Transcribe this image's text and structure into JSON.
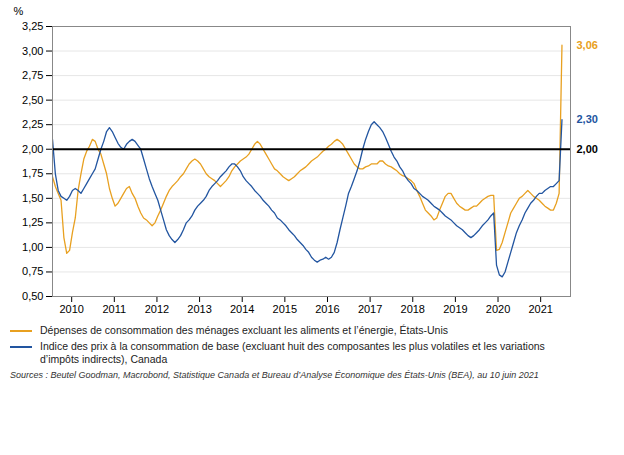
{
  "chart_data": {
    "type": "line",
    "ylabel": "%",
    "source": "Sources : Beutel Goodman, Macrobond, Statistique Canada et Bureau d’Analyse Économique des États-Unis (BEA), au 10 juin 2021",
    "x": [
      2009.55,
      2009.6168,
      2009.6835,
      2009.7503,
      2009.817,
      2009.8838,
      2009.9506,
      2010.0173,
      2010.0841,
      2010.1508,
      2010.2176,
      2010.2844,
      2010.3511,
      2010.4179,
      2010.4846,
      2010.5514,
      2010.6182,
      2010.6849,
      2010.7517,
      2010.8184,
      2010.8852,
      2010.952,
      2011.0187,
      2011.0855,
      2011.1522,
      2011.219,
      2011.2858,
      2011.3525,
      2011.4193,
      2011.486,
      2011.5528,
      2011.6196,
      2011.6863,
      2011.7531,
      2011.8198,
      2011.8866,
      2011.9534,
      2012.0201,
      2012.0869,
      2012.1536,
      2012.2204,
      2012.2872,
      2012.3539,
      2012.4207,
      2012.4874,
      2012.5542,
      2012.6209,
      2012.6877,
      2012.7545,
      2012.8212,
      2012.888,
      2012.9547,
      2013.0215,
      2013.0883,
      2013.155,
      2013.2218,
      2013.2885,
      2013.3553,
      2013.4221,
      2013.4888,
      2013.5556,
      2013.6223,
      2013.6891,
      2013.7559,
      2013.8226,
      2013.8894,
      2013.9561,
      2014.0229,
      2014.0897,
      2014.1564,
      2014.2232,
      2014.2899,
      2014.3567,
      2014.4235,
      2014.4902,
      2014.557,
      2014.6237,
      2014.6905,
      2014.7573,
      2014.824,
      2014.8908,
      2014.9575,
      2015.0243,
      2015.0911,
      2015.1578,
      2015.2246,
      2015.2913,
      2015.3581,
      2015.4249,
      2015.4916,
      2015.5584,
      2015.6251,
      2015.6919,
      2015.7587,
      2015.8254,
      2015.8922,
      2015.9589,
      2016.0257,
      2016.0925,
      2016.1592,
      2016.226,
      2016.2927,
      2016.3595,
      2016.4263,
      2016.493,
      2016.5598,
      2016.6265,
      2016.6933,
      2016.7601,
      2016.8268,
      2016.8936,
      2016.9603,
      2017.0271,
      2017.0939,
      2017.1606,
      2017.2274,
      2017.2941,
      2017.3609,
      2017.4277,
      2017.4944,
      2017.5612,
      2017.6279,
      2017.6947,
      2017.7615,
      2017.8282,
      2017.895,
      2017.9617,
      2018.0285,
      2018.0953,
      2018.162,
      2018.2288,
      2018.2955,
      2018.3623,
      2018.4291,
      2018.4958,
      2018.5626,
      2018.6293,
      2018.6961,
      2018.7628,
      2018.8296,
      2018.8964,
      2018.9631,
      2019.0299,
      2019.0966,
      2019.1634,
      2019.2302,
      2019.2969,
      2019.3637,
      2019.4304,
      2019.4972,
      2019.564,
      2019.6307,
      2019.6975,
      2019.7642,
      2019.831,
      2019.8978,
      2019.9645,
      2020.0313,
      2020.098,
      2020.1648,
      2020.2316,
      2020.2983,
      2020.3651,
      2020.4318,
      2020.4986,
      2020.5654,
      2020.6321,
      2020.6989,
      2020.7656,
      2020.8324,
      2020.8992,
      2020.9659,
      2021.0327,
      2021.0994,
      2021.1662,
      2021.233,
      2021.2997,
      2021.3665,
      2021.4332,
      2021.5
    ],
    "series": [
      {
        "name": "Dépenses de consommation des ménages excluant les aliments et l’énergie, États-Unis",
        "color": "#E8A020",
        "values": [
          1.72,
          1.62,
          1.55,
          1.48,
          1.1,
          0.94,
          0.97,
          1.15,
          1.3,
          1.58,
          1.75,
          1.9,
          1.98,
          2.03,
          2.1,
          2.08,
          2.0,
          1.95,
          1.85,
          1.75,
          1.6,
          1.5,
          1.42,
          1.45,
          1.5,
          1.55,
          1.6,
          1.62,
          1.55,
          1.5,
          1.42,
          1.35,
          1.3,
          1.28,
          1.25,
          1.22,
          1.25,
          1.32,
          1.38,
          1.45,
          1.52,
          1.58,
          1.62,
          1.65,
          1.68,
          1.72,
          1.75,
          1.8,
          1.85,
          1.88,
          1.9,
          1.88,
          1.85,
          1.8,
          1.75,
          1.72,
          1.7,
          1.68,
          1.65,
          1.62,
          1.65,
          1.68,
          1.72,
          1.78,
          1.82,
          1.85,
          1.88,
          1.9,
          1.92,
          1.95,
          2.0,
          2.05,
          2.08,
          2.05,
          2.0,
          1.95,
          1.9,
          1.85,
          1.8,
          1.78,
          1.75,
          1.72,
          1.7,
          1.68,
          1.7,
          1.72,
          1.75,
          1.78,
          1.8,
          1.82,
          1.85,
          1.88,
          1.9,
          1.92,
          1.95,
          1.98,
          2.0,
          2.03,
          2.05,
          2.08,
          2.1,
          2.08,
          2.05,
          2.0,
          1.95,
          1.9,
          1.85,
          1.82,
          1.8,
          1.8,
          1.82,
          1.83,
          1.85,
          1.85,
          1.85,
          1.88,
          1.88,
          1.85,
          1.83,
          1.82,
          1.8,
          1.78,
          1.75,
          1.73,
          1.72,
          1.7,
          1.68,
          1.65,
          1.58,
          1.52,
          1.45,
          1.38,
          1.35,
          1.32,
          1.28,
          1.3,
          1.38,
          1.45,
          1.52,
          1.55,
          1.55,
          1.5,
          1.45,
          1.42,
          1.4,
          1.38,
          1.38,
          1.4,
          1.42,
          1.42,
          1.45,
          1.48,
          1.5,
          1.52,
          1.53,
          1.53,
          0.97,
          0.98,
          1.05,
          1.15,
          1.25,
          1.35,
          1.4,
          1.45,
          1.5,
          1.52,
          1.55,
          1.58,
          1.55,
          1.52,
          1.5,
          1.48,
          1.45,
          1.42,
          1.4,
          1.38,
          1.38,
          1.45,
          1.55,
          3.06
        ]
      },
      {
        "name": "Indice des prix à la consommation de base (excluant huit des composantes les plus volatiles et les variations\nd’impôts indirects), Canada",
        "color": "#2255A0",
        "values": [
          2.1,
          1.75,
          1.58,
          1.52,
          1.5,
          1.48,
          1.52,
          1.58,
          1.6,
          1.58,
          1.55,
          1.6,
          1.65,
          1.7,
          1.75,
          1.8,
          1.9,
          2.0,
          2.08,
          2.18,
          2.22,
          2.18,
          2.12,
          2.06,
          2.02,
          2.0,
          2.05,
          2.08,
          2.1,
          2.08,
          2.04,
          2.0,
          1.9,
          1.8,
          1.7,
          1.62,
          1.55,
          1.48,
          1.38,
          1.28,
          1.18,
          1.12,
          1.08,
          1.05,
          1.08,
          1.12,
          1.18,
          1.25,
          1.28,
          1.32,
          1.38,
          1.42,
          1.45,
          1.48,
          1.52,
          1.58,
          1.62,
          1.65,
          1.68,
          1.72,
          1.75,
          1.78,
          1.82,
          1.85,
          1.85,
          1.82,
          1.78,
          1.72,
          1.68,
          1.65,
          1.62,
          1.58,
          1.55,
          1.52,
          1.48,
          1.45,
          1.42,
          1.38,
          1.35,
          1.3,
          1.28,
          1.25,
          1.22,
          1.18,
          1.15,
          1.12,
          1.08,
          1.05,
          1.02,
          0.98,
          0.95,
          0.9,
          0.87,
          0.85,
          0.87,
          0.88,
          0.9,
          0.88,
          0.9,
          0.95,
          1.05,
          1.18,
          1.3,
          1.42,
          1.55,
          1.62,
          1.7,
          1.78,
          1.88,
          2.0,
          2.1,
          2.18,
          2.25,
          2.28,
          2.25,
          2.22,
          2.18,
          2.12,
          2.05,
          1.98,
          1.92,
          1.88,
          1.82,
          1.78,
          1.72,
          1.68,
          1.65,
          1.6,
          1.58,
          1.55,
          1.52,
          1.5,
          1.48,
          1.45,
          1.42,
          1.4,
          1.38,
          1.35,
          1.32,
          1.3,
          1.28,
          1.25,
          1.22,
          1.2,
          1.18,
          1.15,
          1.12,
          1.1,
          1.12,
          1.15,
          1.18,
          1.22,
          1.25,
          1.28,
          1.32,
          1.35,
          0.82,
          0.72,
          0.7,
          0.75,
          0.85,
          0.95,
          1.05,
          1.15,
          1.22,
          1.28,
          1.35,
          1.4,
          1.45,
          1.48,
          1.52,
          1.55,
          1.55,
          1.58,
          1.6,
          1.62,
          1.62,
          1.65,
          1.68,
          2.3
        ]
      }
    ],
    "reference_lines": [
      {
        "y": 2.0,
        "color": "#000000",
        "label": "2,00"
      }
    ],
    "annotations": [
      {
        "text": "3,06",
        "y": 3.06,
        "color": "#E8A020"
      },
      {
        "text": "2,30",
        "y": 2.3,
        "color": "#2255A0"
      }
    ],
    "xlim": [
      2009.55,
      2021.7
    ],
    "xticks": [
      2010,
      2011,
      2012,
      2013,
      2014,
      2015,
      2016,
      2017,
      2018,
      2019,
      2020,
      2021
    ],
    "ylim": [
      0.5,
      3.25
    ],
    "yticks": [
      {
        "value": 0.5,
        "label": "0,50"
      },
      {
        "value": 0.75,
        "label": "0,75"
      },
      {
        "value": 1.0,
        "label": "1,00"
      },
      {
        "value": 1.25,
        "label": "1,25"
      },
      {
        "value": 1.5,
        "label": "1,50"
      },
      {
        "value": 1.75,
        "label": "1,75"
      },
      {
        "value": 2.0,
        "label": "2,00"
      },
      {
        "value": 2.25,
        "label": "2,25"
      },
      {
        "value": 2.5,
        "label": "2,50"
      },
      {
        "value": 2.75,
        "label": "2,75"
      },
      {
        "value": 3.0,
        "label": "3,00"
      },
      {
        "value": 3.25,
        "label": "3,25"
      }
    ],
    "grid": "y",
    "legend": "bottom"
  }
}
